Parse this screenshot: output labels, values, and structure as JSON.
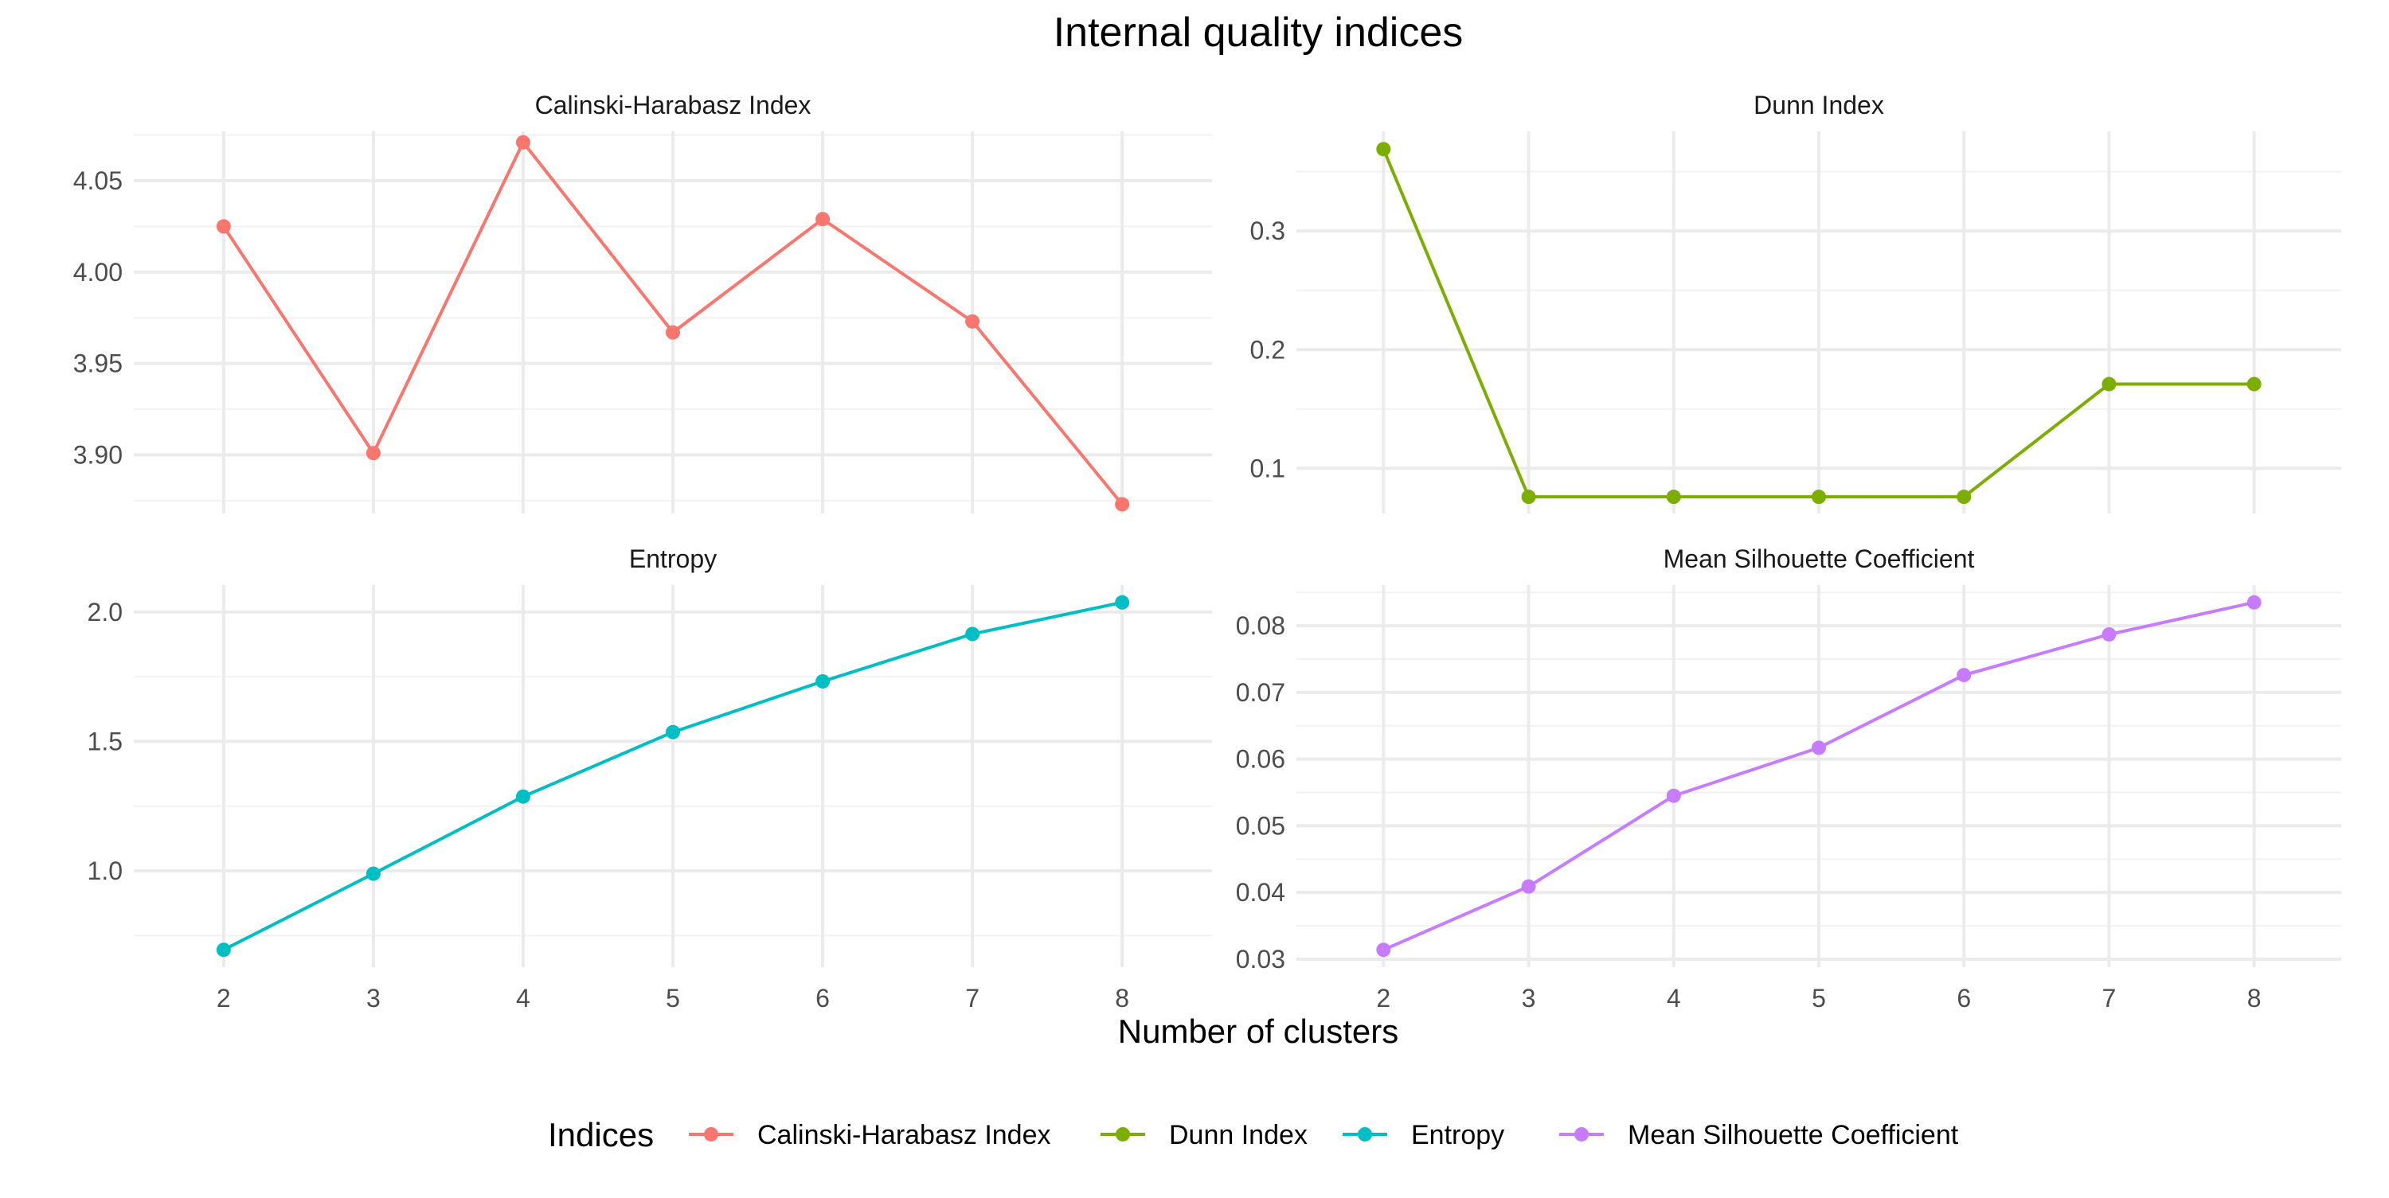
{
  "chart_data": {
    "type": "line",
    "layout": "facet-grid-2x2",
    "title": "Internal quality indices",
    "xlabel": "Number of clusters",
    "x_ticks": [
      2,
      3,
      4,
      5,
      6,
      7,
      8
    ],
    "grid": true,
    "legend": {
      "title": "Indices",
      "position": "bottom",
      "entries": [
        "Calinski-Harabasz Index",
        "Dunn Index",
        "Entropy",
        "Mean Silhouette Coefficient"
      ]
    },
    "panels": [
      {
        "title": "Calinski-Harabasz Index",
        "color": "#F8766D",
        "x": [
          2,
          3,
          4,
          5,
          6,
          7,
          8
        ],
        "y": [
          4.025,
          3.901,
          4.071,
          3.967,
          4.029,
          3.973,
          3.873
        ],
        "ylim": [
          3.868,
          4.077
        ],
        "y_ticks": [
          3.9,
          3.95,
          4.0,
          4.05
        ],
        "y_tick_labels": [
          "3.90",
          "3.95",
          "4.00",
          "4.05"
        ]
      },
      {
        "title": "Dunn Index",
        "color": "#7CAE00",
        "x": [
          2,
          3,
          4,
          5,
          6,
          7,
          8
        ],
        "y": [
          0.369,
          0.076,
          0.076,
          0.076,
          0.076,
          0.171,
          0.171
        ],
        "ylim": [
          0.062,
          0.384
        ],
        "y_ticks": [
          0.1,
          0.2,
          0.3
        ],
        "y_tick_labels": [
          "0.1",
          "0.2",
          "0.3"
        ]
      },
      {
        "title": "Entropy",
        "color": "#00BFC4",
        "x": [
          2,
          3,
          4,
          5,
          6,
          7,
          8
        ],
        "y": [
          0.695,
          0.989,
          1.287,
          1.536,
          1.732,
          1.915,
          2.037
        ],
        "ylim": [
          0.628,
          2.104
        ],
        "y_ticks": [
          1.0,
          1.5,
          2.0
        ],
        "y_tick_labels": [
          "1.0",
          "1.5",
          "2.0"
        ]
      },
      {
        "title": "Mean Silhouette Coefficient",
        "color": "#C77CFF",
        "x": [
          2,
          3,
          4,
          5,
          6,
          7,
          8
        ],
        "y": [
          0.0314,
          0.0409,
          0.0545,
          0.0617,
          0.0726,
          0.0787,
          0.0835
        ],
        "ylim": [
          0.0288,
          0.0861
        ],
        "y_ticks": [
          0.03,
          0.04,
          0.05,
          0.06,
          0.07,
          0.08
        ],
        "y_tick_labels": [
          "0.03",
          "0.04",
          "0.05",
          "0.06",
          "0.07",
          "0.08"
        ]
      }
    ]
  }
}
